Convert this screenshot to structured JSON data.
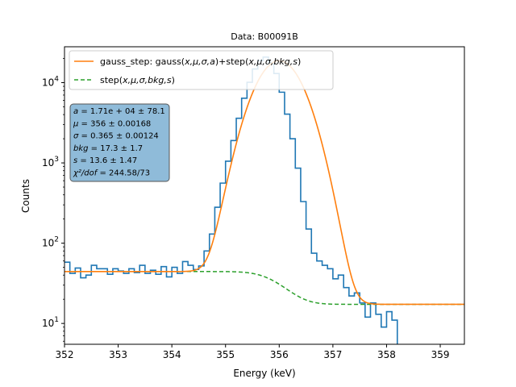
{
  "chart_data": {
    "type": "line",
    "title": "Data: B00091B",
    "xlabel": "Energy (keV)",
    "ylabel": "Counts",
    "xlim": [
      352,
      359.45
    ],
    "ylim": [
      5.5,
      28000
    ],
    "yscale": "log",
    "grid": false,
    "legend_position": "top-left",
    "x_ticks": [
      "352",
      "353",
      "354",
      "355",
      "356",
      "357",
      "358",
      "359"
    ],
    "y_ticks": [
      {
        "value": 10,
        "base": "10",
        "exp": "1"
      },
      {
        "value": 100,
        "base": "10",
        "exp": "2"
      },
      {
        "value": 1000,
        "base": "10",
        "exp": "3"
      },
      {
        "value": 10000,
        "base": "10",
        "exp": "4"
      }
    ],
    "histogram": {
      "bin_width": 0.1,
      "x_start": 352.0,
      "counts": [
        58,
        42,
        49,
        37,
        40,
        53,
        48,
        48,
        41,
        48,
        45,
        42,
        48,
        43,
        53,
        42,
        46,
        41,
        51,
        38,
        50,
        42,
        59,
        53,
        47,
        52,
        80,
        130,
        280,
        560,
        1050,
        1900,
        3600,
        6400,
        10100,
        14800,
        18900,
        20800,
        17800,
        13000,
        7600,
        4050,
        2000,
        860,
        330,
        150,
        75,
        60,
        53,
        48,
        36,
        40,
        28,
        22,
        24,
        18,
        12,
        18,
        13,
        9,
        14,
        11,
        5
      ],
      "color": "#1f77b4"
    },
    "fit": {
      "mu": 356,
      "sigma": 0.365,
      "peak_amplitude": 18700,
      "bkg": 17.3,
      "step_height": 27,
      "color": "#ff7f0e"
    },
    "series": [
      {
        "name": "gauss_step: gauss(x, μ, σ, a)+step(x, μ, σ, bkg, s)",
        "color": "#ff7f0e",
        "style": "solid"
      },
      {
        "name": "step(x, μ, σ, bkg, s)",
        "color": "#2ca02c",
        "style": "dashed"
      }
    ]
  },
  "legend": {
    "gauss_step": {
      "prefix": "gauss_step: gauss(",
      "args1": "x,μ,σ,a",
      "mid": ")+step(",
      "args2": "x,μ,σ,bkg,s",
      "suffix": ")"
    },
    "step": {
      "prefix": "step(",
      "args": "x,μ,σ,bkg,s",
      "suffix": ")"
    }
  },
  "stats_box": {
    "background": "#8fbbd9",
    "lines": [
      {
        "sym": "a",
        "val": " = 1.71e + 04 ± 78.1"
      },
      {
        "sym": "μ",
        "val": " = 356 ± 0.00168"
      },
      {
        "sym": "σ",
        "val": " = 0.365 ± 0.00124"
      },
      {
        "sym": "bkg",
        "val": " = 17.3 ± 1.7"
      },
      {
        "sym": "s",
        "val": " = 13.6 ± 1.47"
      },
      {
        "sym": "χ²/dof",
        "val": " = 244.58/73"
      }
    ]
  }
}
